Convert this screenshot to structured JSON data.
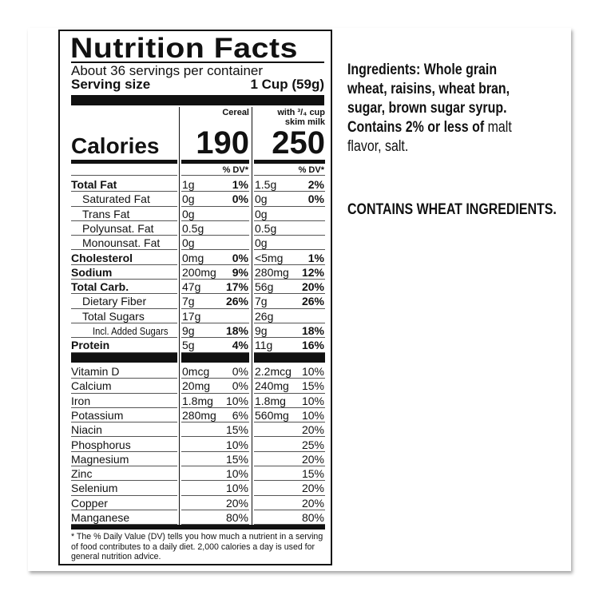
{
  "label": {
    "title": "Nutrition Facts",
    "servings": "About 36 servings per container",
    "serving_size_label": "Serving size",
    "serving_size_value": "1 Cup (59g)",
    "col1_header": "Cereal",
    "col2_header_line1": "with ³/₄ cup",
    "col2_header_line2": "skim milk",
    "calories_label": "Calories",
    "calories_cereal": "190",
    "calories_milk": "250",
    "dv_header": "% DV*",
    "nutrients": [
      {
        "name": "Total Fat",
        "level": "main",
        "c_amt": "1g",
        "c_dv": "1%",
        "m_amt": "1.5g",
        "m_dv": "2%"
      },
      {
        "name": "Saturated Fat",
        "level": "sub",
        "c_amt": "0g",
        "c_dv": "0%",
        "m_amt": "0g",
        "m_dv": "0%"
      },
      {
        "name": "Trans Fat",
        "level": "sub",
        "c_amt": "0g",
        "c_dv": "",
        "m_amt": "0g",
        "m_dv": ""
      },
      {
        "name": "Polyunsat. Fat",
        "level": "sub",
        "c_amt": "0.5g",
        "c_dv": "",
        "m_amt": "0.5g",
        "m_dv": ""
      },
      {
        "name": "Monounsat. Fat",
        "level": "sub",
        "c_amt": "0g",
        "c_dv": "",
        "m_amt": "0g",
        "m_dv": ""
      },
      {
        "name": "Cholesterol",
        "level": "main",
        "c_amt": "0mg",
        "c_dv": "0%",
        "m_amt": "<5mg",
        "m_dv": "1%"
      },
      {
        "name": "Sodium",
        "level": "main",
        "c_amt": "200mg",
        "c_dv": "9%",
        "m_amt": "280mg",
        "m_dv": "12%"
      },
      {
        "name": "Total Carb.",
        "level": "main",
        "c_amt": "47g",
        "c_dv": "17%",
        "m_amt": "56g",
        "m_dv": "20%"
      },
      {
        "name": "Dietary Fiber",
        "level": "sub",
        "c_amt": "7g",
        "c_dv": "26%",
        "m_amt": "7g",
        "m_dv": "26%"
      },
      {
        "name": "Total Sugars",
        "level": "sub",
        "c_amt": "17g",
        "c_dv": "",
        "m_amt": "26g",
        "m_dv": ""
      },
      {
        "name": "Incl. Added Sugars",
        "level": "subsub",
        "c_amt": "9g",
        "c_dv": "18%",
        "m_amt": "9g",
        "m_dv": "18%"
      },
      {
        "name": "Protein",
        "level": "main",
        "c_amt": "5g",
        "c_dv": "4%",
        "m_amt": "11g",
        "m_dv": "16%"
      }
    ],
    "vitamins": [
      {
        "name": "Vitamin D",
        "c_amt": "0mcg",
        "c_dv": "0%",
        "m_amt": "2.2mcg",
        "m_dv": "10%"
      },
      {
        "name": "Calcium",
        "c_amt": "20mg",
        "c_dv": "0%",
        "m_amt": "240mg",
        "m_dv": "15%"
      },
      {
        "name": "Iron",
        "c_amt": "1.8mg",
        "c_dv": "10%",
        "m_amt": "1.8mg",
        "m_dv": "10%"
      },
      {
        "name": "Potassium",
        "c_amt": "280mg",
        "c_dv": "6%",
        "m_amt": "560mg",
        "m_dv": "10%"
      },
      {
        "name": "Niacin",
        "c_amt": "",
        "c_dv": "15%",
        "m_amt": "",
        "m_dv": "20%"
      },
      {
        "name": "Phosphorus",
        "c_amt": "",
        "c_dv": "10%",
        "m_amt": "",
        "m_dv": "25%"
      },
      {
        "name": "Magnesium",
        "c_amt": "",
        "c_dv": "15%",
        "m_amt": "",
        "m_dv": "20%"
      },
      {
        "name": "Zinc",
        "c_amt": "",
        "c_dv": "10%",
        "m_amt": "",
        "m_dv": "15%"
      },
      {
        "name": "Selenium",
        "c_amt": "",
        "c_dv": "10%",
        "m_amt": "",
        "m_dv": "20%"
      },
      {
        "name": "Copper",
        "c_amt": "",
        "c_dv": "20%",
        "m_amt": "",
        "m_dv": "20%"
      },
      {
        "name": "Manganese",
        "c_amt": "",
        "c_dv": "80%",
        "m_amt": "",
        "m_dv": "80%"
      }
    ],
    "footnote": "* The % Daily Value (DV) tells you how much a nutrient in a serving of food contributes to a daily diet. 2,000 calories a day is used for general nutrition advice."
  },
  "ingredients": {
    "line1": "Ingredients: Whole grain",
    "line2": "wheat, raisins, wheat bran,",
    "line3": "sugar, brown sugar syrup.",
    "line4_bold": "Contains 2% or less of ",
    "line4_regular": "malt",
    "line5": "flavor, salt.",
    "allergen": "CONTAINS WHEAT INGREDIENTS."
  }
}
